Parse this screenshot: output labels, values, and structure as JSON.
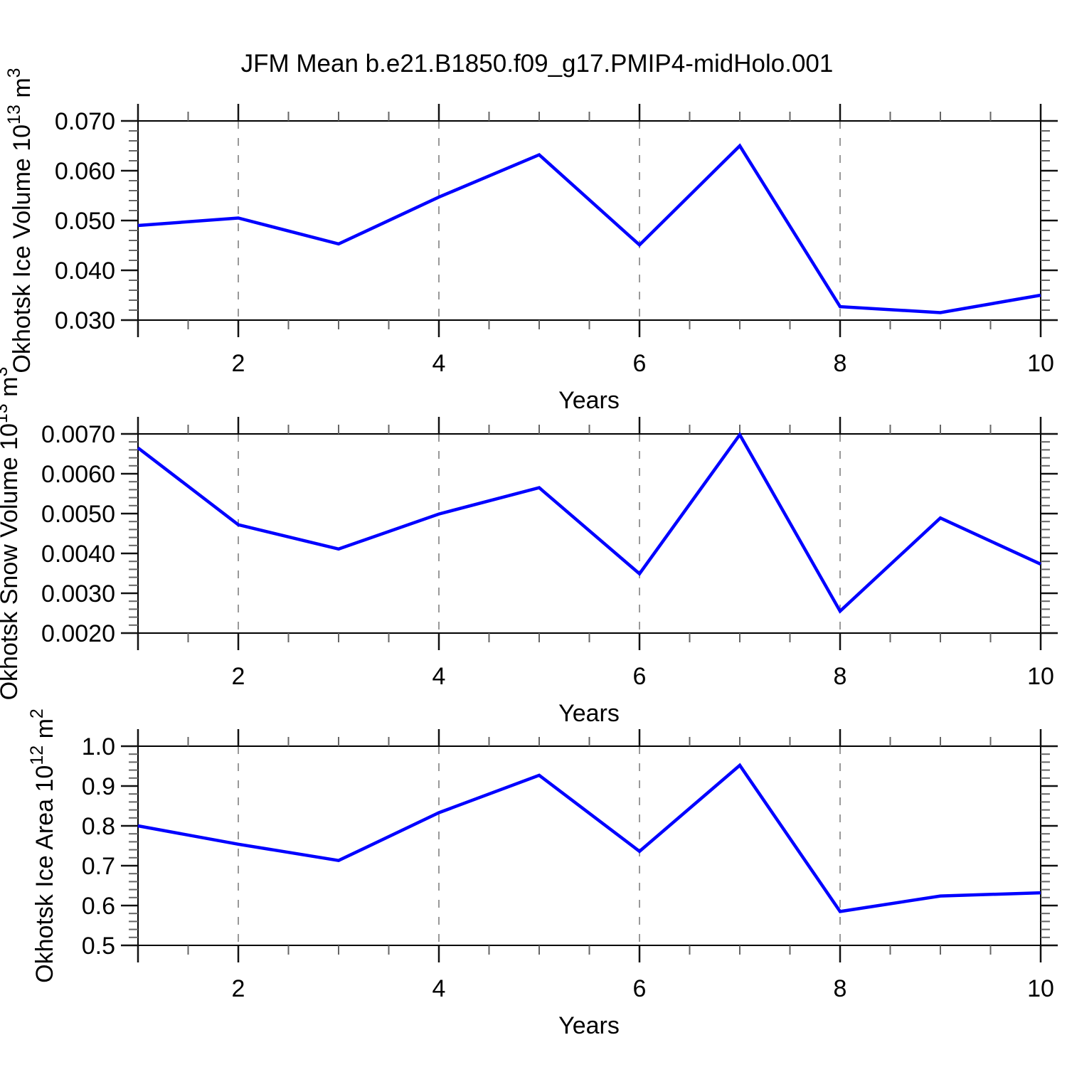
{
  "title": "JFM Mean b.e21.B1850.f09_g17.PMIP4-midHolo.001",
  "colors": {
    "line": "#0000ff",
    "grid": "#999999",
    "axis": "#000000",
    "major_tick": "#111111",
    "minor_tick": "#666666"
  },
  "chart_data": [
    {
      "type": "line",
      "panel": "okhotsk-ice-volume",
      "x": [
        1,
        2,
        3,
        4,
        5,
        6,
        7,
        8,
        9,
        10
      ],
      "values": [
        0.049,
        0.0505,
        0.0453,
        0.0547,
        0.0632,
        0.0451,
        0.065,
        0.0327,
        0.0315,
        0.035
      ],
      "xlabel": "Years",
      "ylabel_parts": [
        "Okhotsk Ice Volume 10",
        "13",
        " m",
        "3"
      ],
      "xlim": [
        1,
        10
      ],
      "ylim": [
        0.03,
        0.07
      ],
      "xticks": {
        "major": [
          2,
          4,
          6,
          8,
          10
        ],
        "labels": [
          "2",
          "4",
          "6",
          "8",
          "10"
        ],
        "minor_step": 0.5
      },
      "yticks": {
        "major": [
          0.03,
          0.04,
          0.05,
          0.06,
          0.07
        ],
        "labels": [
          "0.030",
          "0.040",
          "0.050",
          "0.060",
          "0.070"
        ],
        "minor_step": 0.002
      },
      "gridlines_x": [
        2,
        4,
        6,
        8
      ],
      "grid_on": true,
      "legend": "none",
      "line_color": "#0000ff"
    },
    {
      "type": "line",
      "panel": "okhotsk-snow-volume",
      "x": [
        1,
        2,
        3,
        4,
        5,
        6,
        7,
        8,
        9,
        10
      ],
      "values": [
        0.00665,
        0.00472,
        0.00411,
        0.00499,
        0.00565,
        0.00349,
        0.00698,
        0.00255,
        0.00489,
        0.00373
      ],
      "xlabel": "Years",
      "ylabel_parts": [
        "Okhotsk Snow Volume 10",
        "13",
        " m",
        "3"
      ],
      "xlim": [
        1,
        10
      ],
      "ylim": [
        0.002,
        0.007
      ],
      "xticks": {
        "major": [
          2,
          4,
          6,
          8,
          10
        ],
        "labels": [
          "2",
          "4",
          "6",
          "8",
          "10"
        ],
        "minor_step": 0.5
      },
      "yticks": {
        "major": [
          0.002,
          0.003,
          0.004,
          0.005,
          0.006,
          0.007
        ],
        "labels": [
          "0.0020",
          "0.0030",
          "0.0040",
          "0.0050",
          "0.0060",
          "0.0070"
        ],
        "minor_step": 0.0002
      },
      "gridlines_x": [
        2,
        4,
        6,
        8
      ],
      "grid_on": true,
      "legend": "none",
      "line_color": "#0000ff"
    },
    {
      "type": "line",
      "panel": "okhotsk-ice-area",
      "x": [
        1,
        2,
        3,
        4,
        5,
        6,
        7,
        8,
        9,
        10
      ],
      "values": [
        0.8,
        0.754,
        0.713,
        0.833,
        0.927,
        0.736,
        0.952,
        0.585,
        0.624,
        0.632
      ],
      "xlabel": "Years",
      "ylabel_parts": [
        "Okhotsk Ice Area 10",
        "12",
        " m",
        "2"
      ],
      "xlim": [
        1,
        10
      ],
      "ylim": [
        0.5,
        1.0
      ],
      "xticks": {
        "major": [
          2,
          4,
          6,
          8,
          10
        ],
        "labels": [
          "2",
          "4",
          "6",
          "8",
          "10"
        ],
        "minor_step": 0.5
      },
      "yticks": {
        "major": [
          0.5,
          0.6,
          0.7,
          0.8,
          0.9,
          1.0
        ],
        "labels": [
          "0.5",
          "0.6",
          "0.7",
          "0.8",
          "0.9",
          "1.0"
        ],
        "minor_step": 0.02
      },
      "gridlines_x": [
        2,
        4,
        6,
        8
      ],
      "grid_on": true,
      "legend": "none",
      "line_color": "#0000ff"
    }
  ]
}
